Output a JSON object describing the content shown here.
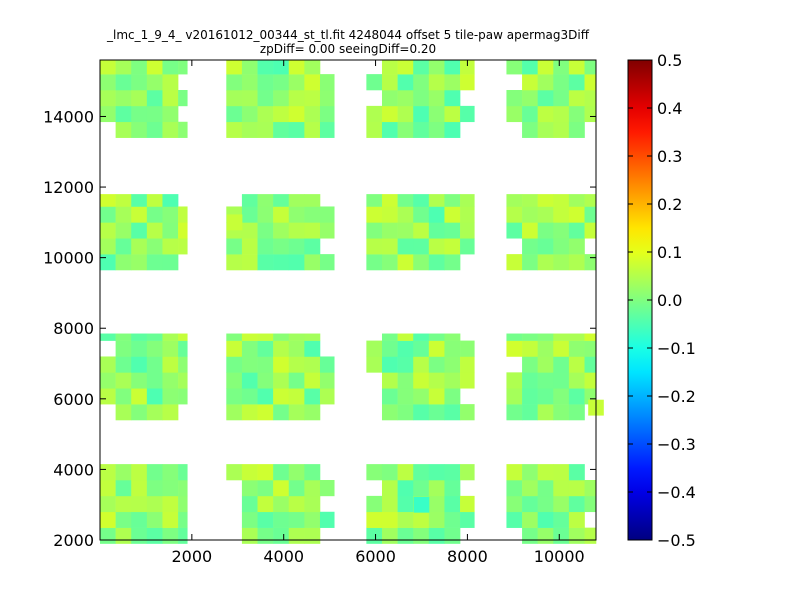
{
  "chart_data": {
    "type": "heatmap",
    "title_line1": "_lmc_1_9_4_ v20161012_00344_st_tl.fit 4248044 offset 5 tile-paw apermag3Diff",
    "title_line2": "zpDiff= 0.00 seeingDiff=0.20",
    "xlim": [
      0,
      10800
    ],
    "ylim": [
      2000,
      15600
    ],
    "x_ticks": [
      "2000",
      "4000",
      "6000",
      "8000",
      "10000"
    ],
    "y_ticks": [
      "2000",
      "4000",
      "6000",
      "8000",
      "10000",
      "12000",
      "14000"
    ],
    "colorbar": {
      "colormap": "jet",
      "vmin": -0.5,
      "vmax": 0.5,
      "ticks": [
        "0.5",
        "0.4",
        "0.3",
        "0.2",
        "0.1",
        "0.0",
        "−0.1",
        "−0.2",
        "−0.3",
        "−0.4",
        "−0.5"
      ]
    },
    "cell_size": [
      340,
      450
    ],
    "columns_x": [
      [
        0,
        1900
      ],
      [
        2750,
        5100
      ],
      [
        5800,
        8150
      ],
      [
        8850,
        10800
      ]
    ],
    "row_bands_y": [
      [
        1900,
        4150
      ],
      [
        5400,
        7850
      ],
      [
        9650,
        11800
      ],
      [
        13400,
        15600
      ]
    ],
    "value_range_typical": [
      -0.05,
      0.08
    ],
    "notable_cells": [
      {
        "x": 7000,
        "y": 3000,
        "value": -0.07
      },
      {
        "x": 10800,
        "y": 5750,
        "value": 0.07
      },
      {
        "x": 2930,
        "y": 11000,
        "value": 0.07
      }
    ]
  }
}
